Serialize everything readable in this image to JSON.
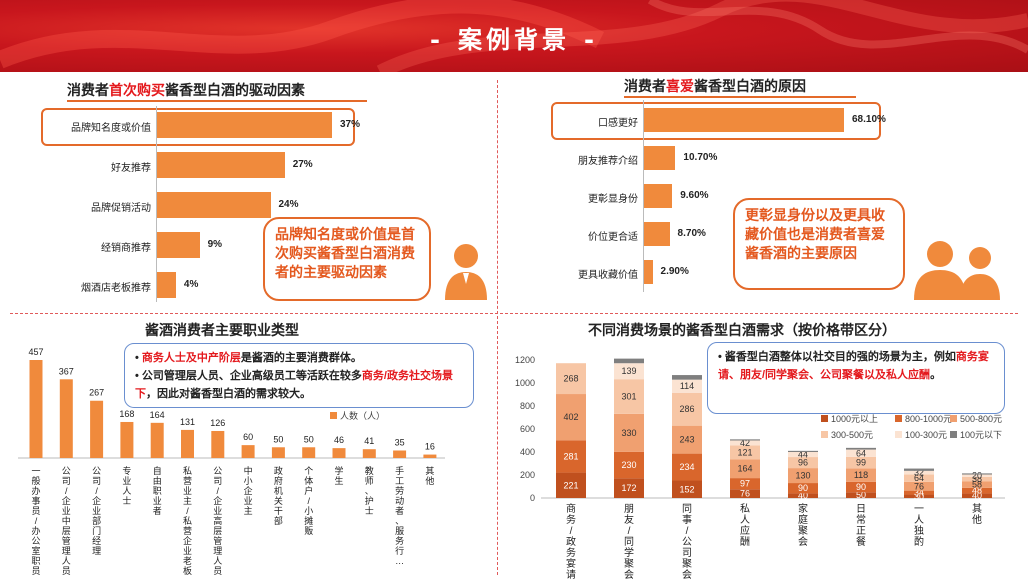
{
  "header": {
    "title": "案例背景"
  },
  "q1": {
    "title_pre": "消费者",
    "title_hl": "首次购买",
    "title_post": "酱香型白酒的驱动因素",
    "callout": "品牌知名度或价值是首次购买酱香型白酒消费者的主要驱动因素",
    "chart_data": {
      "type": "bar",
      "orientation": "horizontal",
      "categories": [
        "品牌知名度或价值",
        "好友推荐",
        "品牌促销活动",
        "经销商推荐",
        "烟酒店老板推荐"
      ],
      "values": [
        37,
        27,
        24,
        9,
        4
      ],
      "value_labels": [
        "37%",
        "27%",
        "24%",
        "9%",
        "4%"
      ],
      "color": "#f08a3c"
    }
  },
  "q2": {
    "title_pre": "消费者",
    "title_hl": "喜爱",
    "title_post": "酱香型白酒的原因",
    "callout": "更彰显身份以及更具收藏价值也是消费者喜爱酱香酒的主要原因",
    "chart_data": {
      "type": "bar",
      "orientation": "horizontal",
      "categories": [
        "口感更好",
        "朋友推荐介绍",
        "更彰显身份",
        "价位更合适",
        "更具收藏价值"
      ],
      "values": [
        68.1,
        10.7,
        9.6,
        8.7,
        2.9
      ],
      "value_labels": [
        "68.10%",
        "10.70%",
        "9.60%",
        "8.70%",
        "2.90%"
      ],
      "color": "#f08a3c"
    }
  },
  "q3": {
    "title": "酱酒消费者主要职业类型",
    "note": {
      "b1_hl": "商务人士及中产阶层",
      "b1_rest": "是酱酒的主要消费群体。",
      "b2_pre": "公司管理层人员、企业高级员工等活跃在较多",
      "b2_hl": "商务/政务社交场景下",
      "b2_post": "，因此对酱香型白酒的需求较大。"
    },
    "chart_data": {
      "type": "bar",
      "categories": [
        "一般办事员/办公室职员",
        "公司/企业中层管理人员",
        "公司/企业部门经理",
        "专业人士",
        "自由职业者",
        "私营业主/私营企业老板",
        "公司/企业高层管理人员",
        "中小企业主",
        "政府机关干部",
        "个体户/小摊贩",
        "学生",
        "教师、护士",
        "手工劳动者、服务行…",
        "其他"
      ],
      "values": [
        457,
        367,
        267,
        168,
        164,
        131,
        126,
        60,
        50,
        50,
        46,
        41,
        35,
        16
      ],
      "legend": "人数（人）",
      "color": "#f08a3c"
    }
  },
  "q4": {
    "title": "不同消费场景的酱香型白酒需求（按价格带区分）",
    "note": {
      "pre": "酱香型白酒整体以社交目的强的场景为主，例如",
      "hl": "商务宴请、朋友/同学聚会、公司聚餐以及私人应酬",
      "post": "。"
    },
    "chart_data": {
      "type": "bar",
      "stacked": true,
      "categories": [
        "商务/政务宴请",
        "朋友/同学聚会",
        "同事/公司聚会",
        "私人应酬",
        "家庭聚会",
        "日常正餐",
        "一人独酌",
        "其他"
      ],
      "ylim": [
        0,
        1200
      ],
      "yticks": [
        0,
        200,
        400,
        600,
        800,
        1000,
        1200
      ],
      "series": [
        {
          "name": "1000元以上",
          "color": "#c0501e",
          "values": [
            221,
            172,
            152,
            76,
            40,
            50,
            30,
            40
          ]
        },
        {
          "name": "800-1000元",
          "color": "#d9662c",
          "values": [
            281,
            230,
            234,
            97,
            90,
            90,
            34,
            48
          ]
        },
        {
          "name": "500-800元",
          "color": "#f0a070",
          "values": [
            402,
            330,
            243,
            164,
            130,
            118,
            76,
            58
          ]
        },
        {
          "name": "300-500元",
          "color": "#f7c6a5",
          "values": [
            268,
            301,
            286,
            121,
            96,
            99,
            64,
            38
          ]
        },
        {
          "name": "100-300元",
          "color": "#fbe3d2",
          "values": [
            0,
            139,
            114,
            42,
            44,
            64,
            32,
            20
          ]
        },
        {
          "name": "100元以下",
          "color": "#7f7f7f",
          "values": [
            0,
            40,
            40,
            10,
            10,
            15,
            20,
            10
          ]
        }
      ],
      "labels": [
        [
          "221",
          "281",
          "402",
          "268",
          "",
          ""
        ],
        [
          "172",
          "230",
          "330",
          "301",
          "139",
          ""
        ],
        [
          "152",
          "234",
          "243",
          "286",
          "114",
          ""
        ],
        [
          "76",
          "97",
          "164",
          "121",
          "42",
          ""
        ],
        [
          "40",
          "90",
          "130",
          "96",
          "44",
          ""
        ],
        [
          "50",
          "90",
          "118",
          "99",
          "64",
          ""
        ],
        [
          "30",
          "34",
          "76",
          "64",
          "32",
          ""
        ],
        [
          "40",
          "48",
          "58",
          "38",
          "20",
          ""
        ]
      ]
    }
  }
}
